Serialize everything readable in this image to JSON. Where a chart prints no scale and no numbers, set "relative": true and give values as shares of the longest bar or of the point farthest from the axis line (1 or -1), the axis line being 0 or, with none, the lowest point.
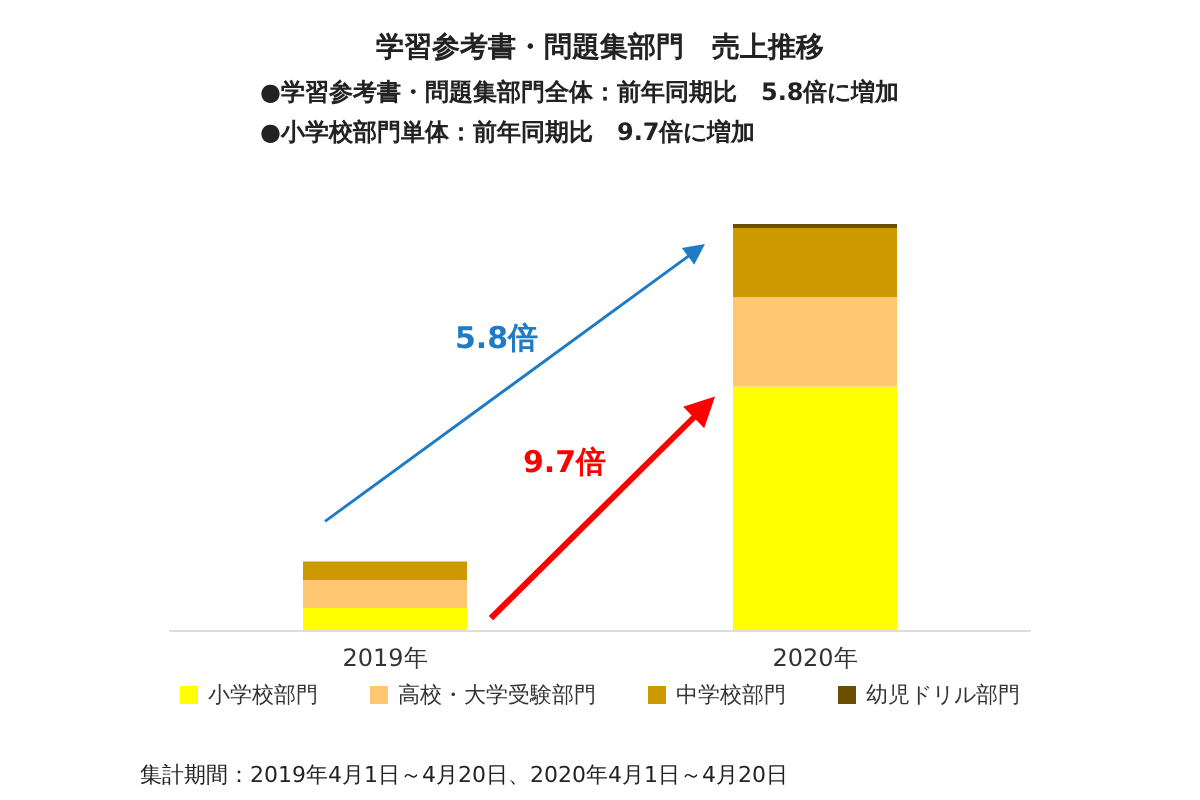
{
  "chart_data": {
    "type": "bar",
    "title": "学習参考書・問題集部門　売上推移",
    "relative": true,
    "stacked": true,
    "categories": [
      "2019年",
      "2020年"
    ],
    "series": [
      {
        "name": "小学校部門",
        "color": "#ffff00",
        "values": [
          0.054,
          0.6
        ]
      },
      {
        "name": "高校・大学受験部門",
        "color": "#ffc870",
        "values": [
          0.069,
          0.22
        ]
      },
      {
        "name": "中学校部門",
        "color": "#cc9900",
        "values": [
          0.046,
          0.17
        ]
      },
      {
        "name": "幼児ドリル部門",
        "color": "#6b4f00",
        "values": [
          null,
          0.01
        ]
      }
    ],
    "legend": "bottom",
    "annotations": [
      "●学習参考書・問題集部門全体：前年同期比　5.8倍に増加",
      "●小学校部門単体：前年同期比　9.7倍に増加",
      "5.8倍",
      "9.7倍",
      "集計期間：2019年4月1日～4月20日、2020年4月1日～4月20日"
    ]
  }
}
